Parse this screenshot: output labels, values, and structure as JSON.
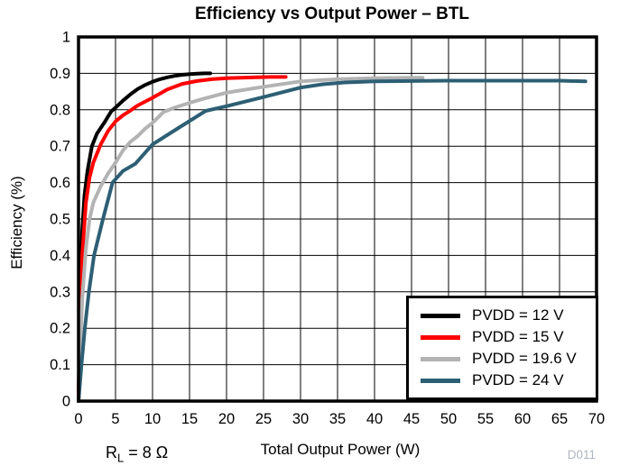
{
  "chart_data": {
    "type": "line",
    "title": "Efficiency vs Output Power – BTL",
    "xlabel": "Total Output Power (W)",
    "ylabel": "Efficiency (%)",
    "xlim": [
      0,
      70
    ],
    "ylim": [
      0,
      1
    ],
    "grid": true,
    "legend_position": "lower right",
    "x_ticks": [
      "0",
      "5",
      "10",
      "15",
      "20",
      "25",
      "30",
      "35",
      "40",
      "45",
      "50",
      "55",
      "60",
      "65",
      "70"
    ],
    "y_ticks": [
      "0",
      "0.1",
      "0.2",
      "0.3",
      "0.4",
      "0.5",
      "0.6",
      "0.7",
      "0.8",
      "0.9",
      "1"
    ],
    "series": [
      {
        "id": "pvdd-12v",
        "label": "PVDD = 12 V",
        "color": "#000000",
        "points": [
          [
            0,
            0
          ],
          [
            0.15,
            0.2
          ],
          [
            0.3,
            0.35
          ],
          [
            0.5,
            0.47
          ],
          [
            0.8,
            0.565
          ],
          [
            1.2,
            0.63
          ],
          [
            1.8,
            0.7
          ],
          [
            2.5,
            0.735
          ],
          [
            3.5,
            0.765
          ],
          [
            4.4,
            0.795
          ],
          [
            5,
            0.806
          ],
          [
            6,
            0.825
          ],
          [
            7,
            0.842
          ],
          [
            8,
            0.857
          ],
          [
            9,
            0.868
          ],
          [
            10,
            0.877
          ],
          [
            11,
            0.884
          ],
          [
            12,
            0.889
          ],
          [
            13,
            0.893
          ],
          [
            14,
            0.896
          ],
          [
            15,
            0.898
          ],
          [
            16,
            0.899
          ],
          [
            17,
            0.9
          ],
          [
            17.8,
            0.9
          ]
        ]
      },
      {
        "id": "pvdd-15v",
        "label": "PVDD = 15 V",
        "color": "#ff0000",
        "points": [
          [
            0,
            0
          ],
          [
            0.2,
            0.2
          ],
          [
            0.5,
            0.4
          ],
          [
            1,
            0.545
          ],
          [
            1.5,
            0.615
          ],
          [
            2,
            0.655
          ],
          [
            3,
            0.705
          ],
          [
            4,
            0.742
          ],
          [
            5,
            0.768
          ],
          [
            6,
            0.785
          ],
          [
            6.8,
            0.795
          ],
          [
            8,
            0.812
          ],
          [
            10,
            0.833
          ],
          [
            12,
            0.856
          ],
          [
            14,
            0.871
          ],
          [
            16,
            0.879
          ],
          [
            18,
            0.884
          ],
          [
            20,
            0.887
          ],
          [
            22,
            0.888
          ],
          [
            24,
            0.889
          ],
          [
            26,
            0.89
          ],
          [
            28,
            0.89
          ]
        ]
      },
      {
        "id": "pvdd-19p6v",
        "label": "PVDD = 19.6 V",
        "color": "#b3b3b3",
        "points": [
          [
            0,
            0
          ],
          [
            0.2,
            0.13
          ],
          [
            0.5,
            0.28
          ],
          [
            1,
            0.42
          ],
          [
            1.5,
            0.5
          ],
          [
            2,
            0.545
          ],
          [
            3,
            0.59
          ],
          [
            4,
            0.625
          ],
          [
            5,
            0.655
          ],
          [
            6,
            0.688
          ],
          [
            7,
            0.712
          ],
          [
            8,
            0.728
          ],
          [
            9,
            0.748
          ],
          [
            10,
            0.764
          ],
          [
            11.5,
            0.794
          ],
          [
            13,
            0.806
          ],
          [
            15,
            0.819
          ],
          [
            17,
            0.831
          ],
          [
            20,
            0.847
          ],
          [
            25,
            0.863
          ],
          [
            30,
            0.878
          ],
          [
            35,
            0.884
          ],
          [
            40,
            0.887
          ],
          [
            45,
            0.888
          ],
          [
            46.5,
            0.888
          ]
        ]
      },
      {
        "id": "pvdd-24v",
        "label": "PVDD = 24 V",
        "color": "#2d5f74",
        "points": [
          [
            0,
            0
          ],
          [
            0.4,
            0.1
          ],
          [
            0.85,
            0.2
          ],
          [
            1.4,
            0.3
          ],
          [
            2.1,
            0.4
          ],
          [
            3.3,
            0.5
          ],
          [
            4.6,
            0.6
          ],
          [
            6,
            0.632
          ],
          [
            7.7,
            0.652
          ],
          [
            10,
            0.705
          ],
          [
            13.5,
            0.75
          ],
          [
            17.2,
            0.797
          ],
          [
            20,
            0.81
          ],
          [
            25,
            0.835
          ],
          [
            30,
            0.861
          ],
          [
            33,
            0.87
          ],
          [
            36,
            0.875
          ],
          [
            40,
            0.878
          ],
          [
            45,
            0.879
          ],
          [
            50,
            0.88
          ],
          [
            55,
            0.88
          ],
          [
            60,
            0.88
          ],
          [
            65,
            0.88
          ],
          [
            68.5,
            0.878
          ]
        ]
      }
    ]
  },
  "annotations": {
    "load": {
      "base": "R",
      "sub": "L",
      "rest": " = 8 Ω"
    },
    "figure_id": "D011"
  }
}
